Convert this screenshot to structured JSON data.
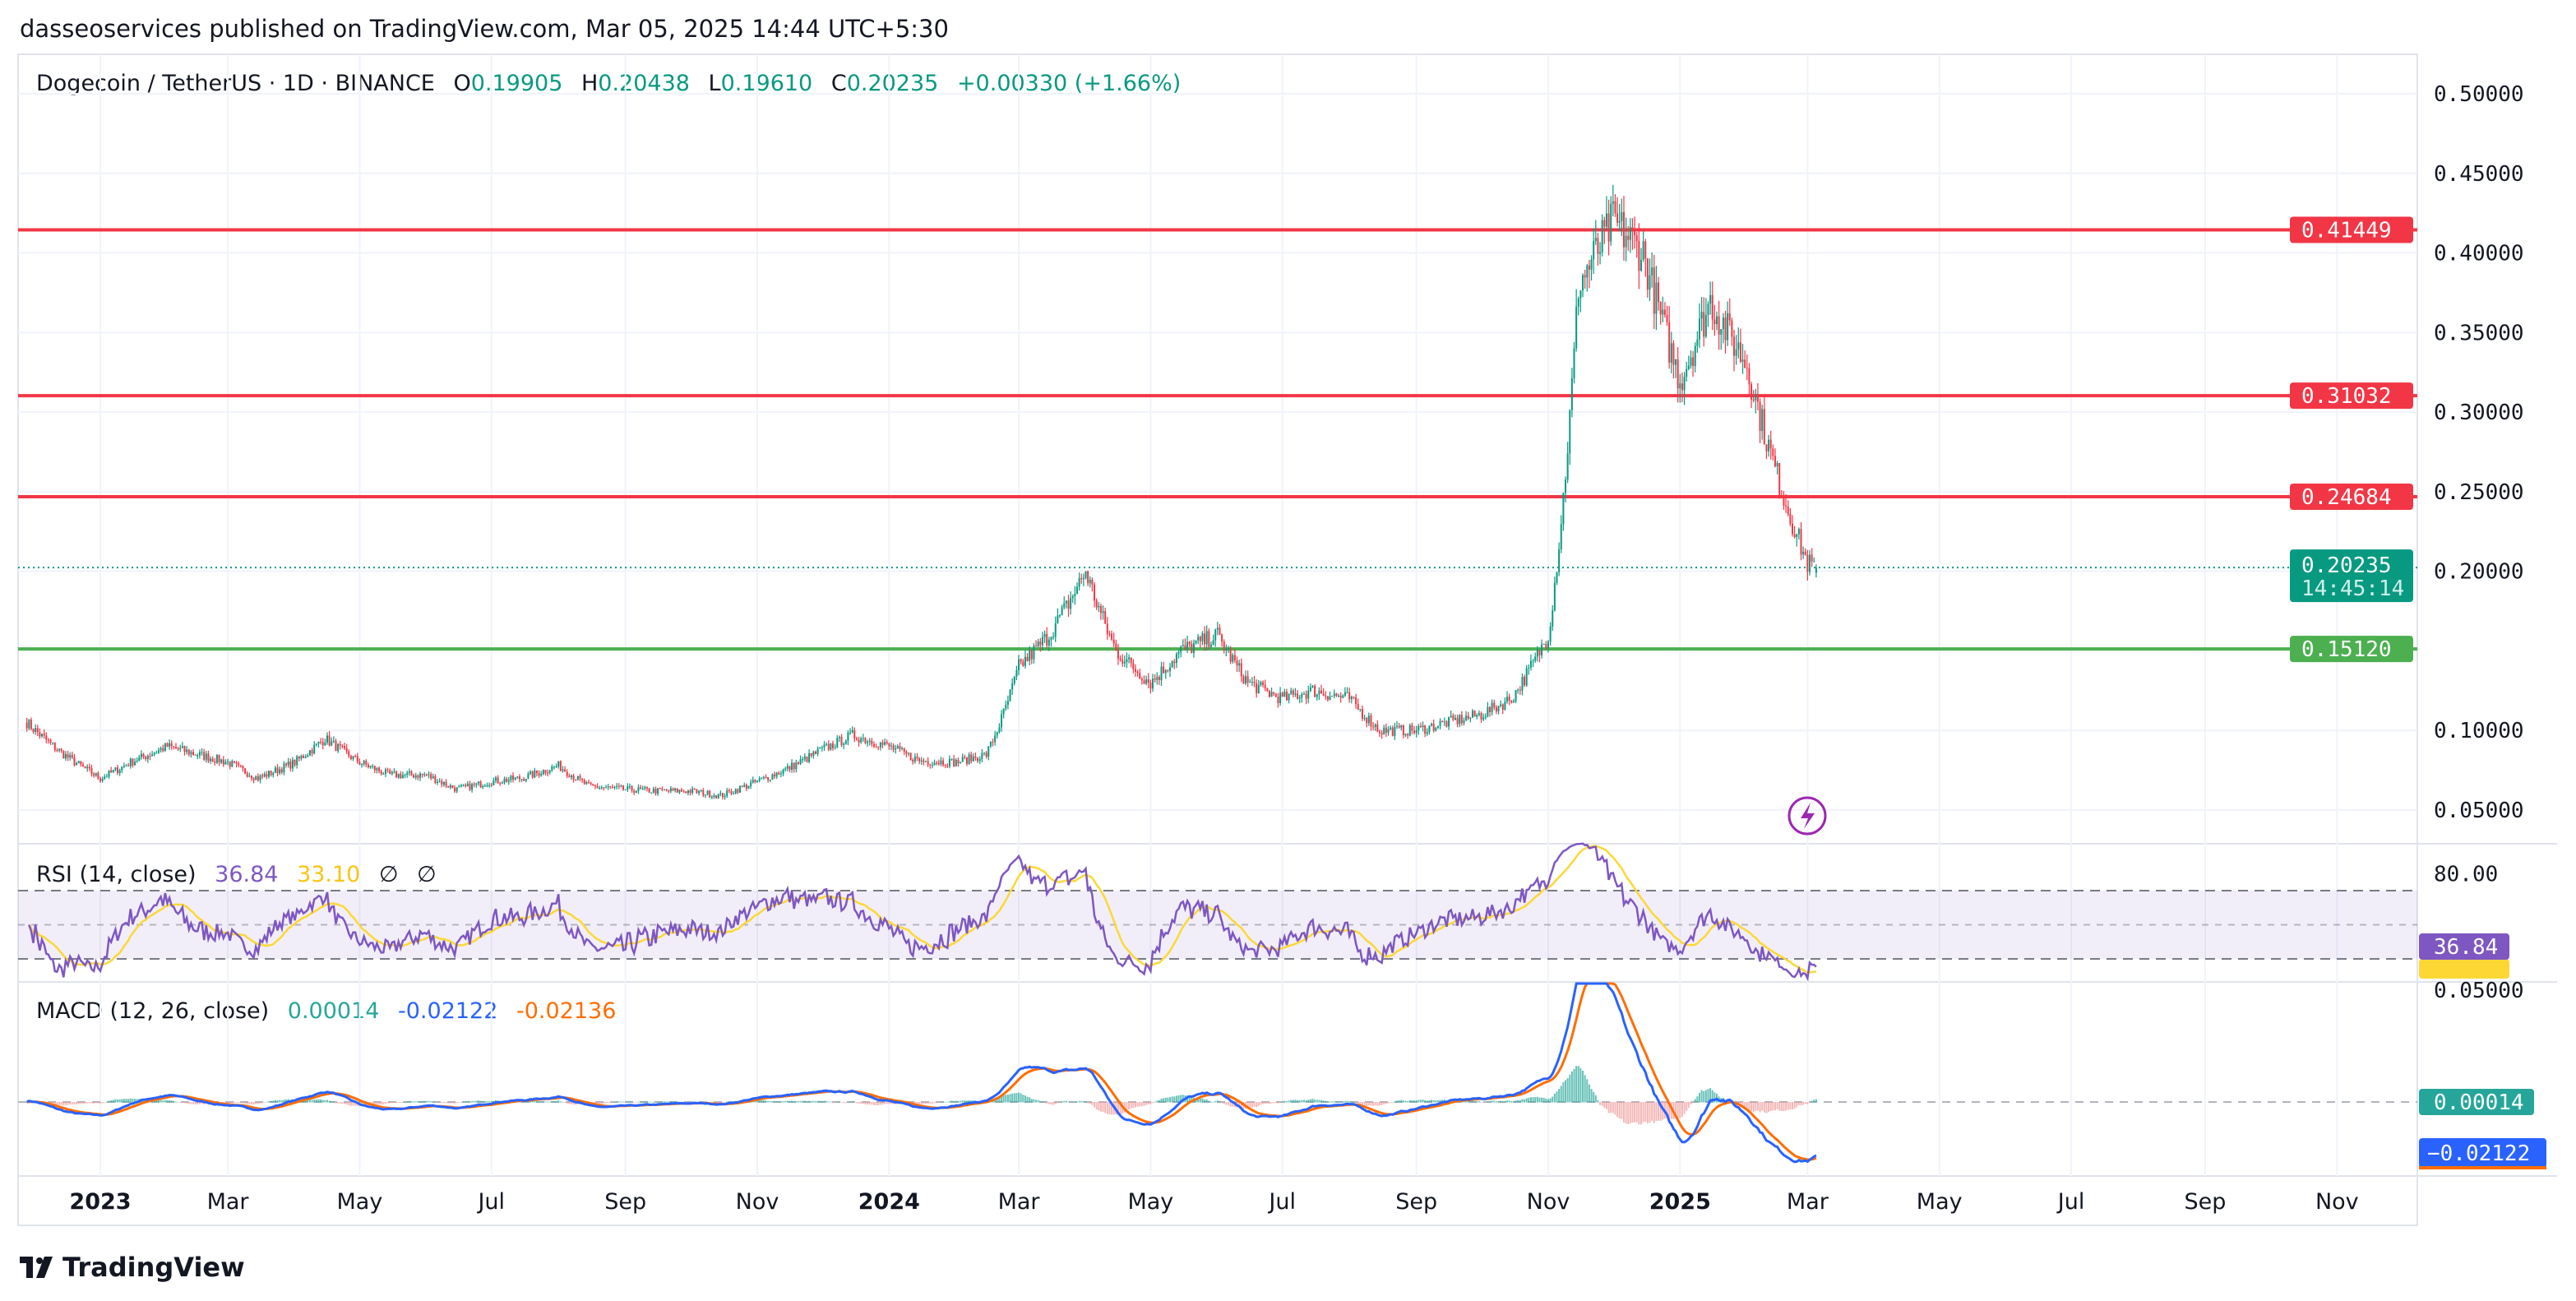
{
  "publisher": "dasseoservices published on TradingView.com, Mar 05, 2025 14:44 UTC+5:30",
  "symbol": "Dogecoin / TetherUS · 1D · BINANCE",
  "ohlc": {
    "o_label": "O",
    "o": "0.19905",
    "h_label": "H",
    "h": "0.20438",
    "l_label": "L",
    "l": "0.19610",
    "c_label": "C",
    "c": "0.20235",
    "change": "+0.00330 (+1.66%)"
  },
  "rsi": {
    "label": "RSI (14, close)",
    "value": "36.84",
    "ma": "33.10",
    "extra1": "∅",
    "extra2": "∅",
    "axis_label": "80.00",
    "badge_rsi": "36.84",
    "badge_ma": "33.10"
  },
  "macd": {
    "label": "MACD (12, 26, close)",
    "hist": "0.00014",
    "macd": "-0.02122",
    "signal": "-0.02136",
    "axis_label": "0.05000",
    "badge_hist": "0.00014",
    "badge_macd": "−0.02122"
  },
  "current": {
    "price": "0.20235",
    "countdown": "14:45:14"
  },
  "levels": [
    {
      "label": "0.41449",
      "value": 0.41449,
      "color": "#f23645"
    },
    {
      "label": "0.31032",
      "value": 0.31032,
      "color": "#f23645"
    },
    {
      "label": "0.24684",
      "value": 0.24684,
      "color": "#f23645"
    },
    {
      "label": "0.15120",
      "value": 0.1512,
      "color": "#4caf50"
    }
  ],
  "colors": {
    "up": "#089981",
    "down": "#f23645",
    "rsi": "#7e57c2",
    "rsi_ma": "#fdd835",
    "macd": "#2962ff",
    "signal": "#ff6d00"
  },
  "brand": "TradingView",
  "chart_data": {
    "type": "candlestick",
    "title": "Dogecoin / TetherUS · 1D · BINANCE",
    "y_ticks": [
      "0.50000",
      "0.45000",
      "0.40000",
      "0.35000",
      "0.30000",
      "0.25000",
      "0.20000",
      "0.10000",
      "0.05000"
    ],
    "y_tick_values": [
      0.5,
      0.45,
      0.4,
      0.35,
      0.3,
      0.25,
      0.2,
      0.1,
      0.05
    ],
    "ylim": [
      0.05,
      0.5
    ],
    "x_ticks": [
      {
        "label": "2023",
        "date": "2023-01-01",
        "bold": true
      },
      {
        "label": "Mar",
        "date": "2023-03-01"
      },
      {
        "label": "May",
        "date": "2023-05-01"
      },
      {
        "label": "Jul",
        "date": "2023-07-01"
      },
      {
        "label": "Sep",
        "date": "2023-09-01"
      },
      {
        "label": "Nov",
        "date": "2023-11-01"
      },
      {
        "label": "2024",
        "date": "2024-01-01",
        "bold": true
      },
      {
        "label": "Mar",
        "date": "2024-03-01"
      },
      {
        "label": "May",
        "date": "2024-05-01"
      },
      {
        "label": "Jul",
        "date": "2024-07-01"
      },
      {
        "label": "Sep",
        "date": "2024-09-01"
      },
      {
        "label": "Nov",
        "date": "2024-11-01"
      },
      {
        "label": "2025",
        "date": "2025-01-01",
        "bold": true
      },
      {
        "label": "Mar",
        "date": "2025-03-01"
      },
      {
        "label": "May",
        "date": "2025-05-01"
      },
      {
        "label": "Jul",
        "date": "2025-07-01"
      },
      {
        "label": "Sep",
        "date": "2025-09-01"
      },
      {
        "label": "Nov",
        "date": "2025-11-01"
      }
    ],
    "approx_closes": [
      [
        "2022-11-28",
        0.105
      ],
      [
        "2022-12-15",
        0.085
      ],
      [
        "2023-01-01",
        0.07
      ],
      [
        "2023-01-15",
        0.08
      ],
      [
        "2023-02-01",
        0.09
      ],
      [
        "2023-02-15",
        0.085
      ],
      [
        "2023-03-01",
        0.08
      ],
      [
        "2023-03-15",
        0.07
      ],
      [
        "2023-04-01",
        0.08
      ],
      [
        "2023-04-15",
        0.095
      ],
      [
        "2023-05-01",
        0.08
      ],
      [
        "2023-05-15",
        0.072
      ],
      [
        "2023-06-01",
        0.072
      ],
      [
        "2023-06-15",
        0.063
      ],
      [
        "2023-07-01",
        0.068
      ],
      [
        "2023-07-15",
        0.07
      ],
      [
        "2023-08-01",
        0.078
      ],
      [
        "2023-08-15",
        0.065
      ],
      [
        "2023-09-01",
        0.063
      ],
      [
        "2023-09-15",
        0.062
      ],
      [
        "2023-10-01",
        0.062
      ],
      [
        "2023-10-15",
        0.059
      ],
      [
        "2023-11-01",
        0.068
      ],
      [
        "2023-11-15",
        0.076
      ],
      [
        "2023-12-01",
        0.088
      ],
      [
        "2023-12-15",
        0.097
      ],
      [
        "2024-01-01",
        0.09
      ],
      [
        "2024-01-15",
        0.081
      ],
      [
        "2024-02-01",
        0.08
      ],
      [
        "2024-02-15",
        0.085
      ],
      [
        "2024-03-01",
        0.14
      ],
      [
        "2024-03-15",
        0.16
      ],
      [
        "2024-04-01",
        0.2
      ],
      [
        "2024-04-15",
        0.15
      ],
      [
        "2024-05-01",
        0.13
      ],
      [
        "2024-05-15",
        0.15
      ],
      [
        "2024-06-01",
        0.16
      ],
      [
        "2024-06-15",
        0.13
      ],
      [
        "2024-07-01",
        0.12
      ],
      [
        "2024-07-15",
        0.125
      ],
      [
        "2024-08-01",
        0.12
      ],
      [
        "2024-08-15",
        0.1
      ],
      [
        "2024-09-01",
        0.1
      ],
      [
        "2024-09-15",
        0.105
      ],
      [
        "2024-10-01",
        0.11
      ],
      [
        "2024-10-15",
        0.12
      ],
      [
        "2024-11-01",
        0.16
      ],
      [
        "2024-11-15",
        0.38
      ],
      [
        "2024-12-01",
        0.42
      ],
      [
        "2024-12-15",
        0.4
      ],
      [
        "2025-01-01",
        0.32
      ],
      [
        "2025-01-15",
        0.37
      ],
      [
        "2025-02-01",
        0.33
      ],
      [
        "2025-02-15",
        0.26
      ],
      [
        "2025-03-01",
        0.205
      ],
      [
        "2025-03-05",
        0.20235
      ]
    ]
  }
}
